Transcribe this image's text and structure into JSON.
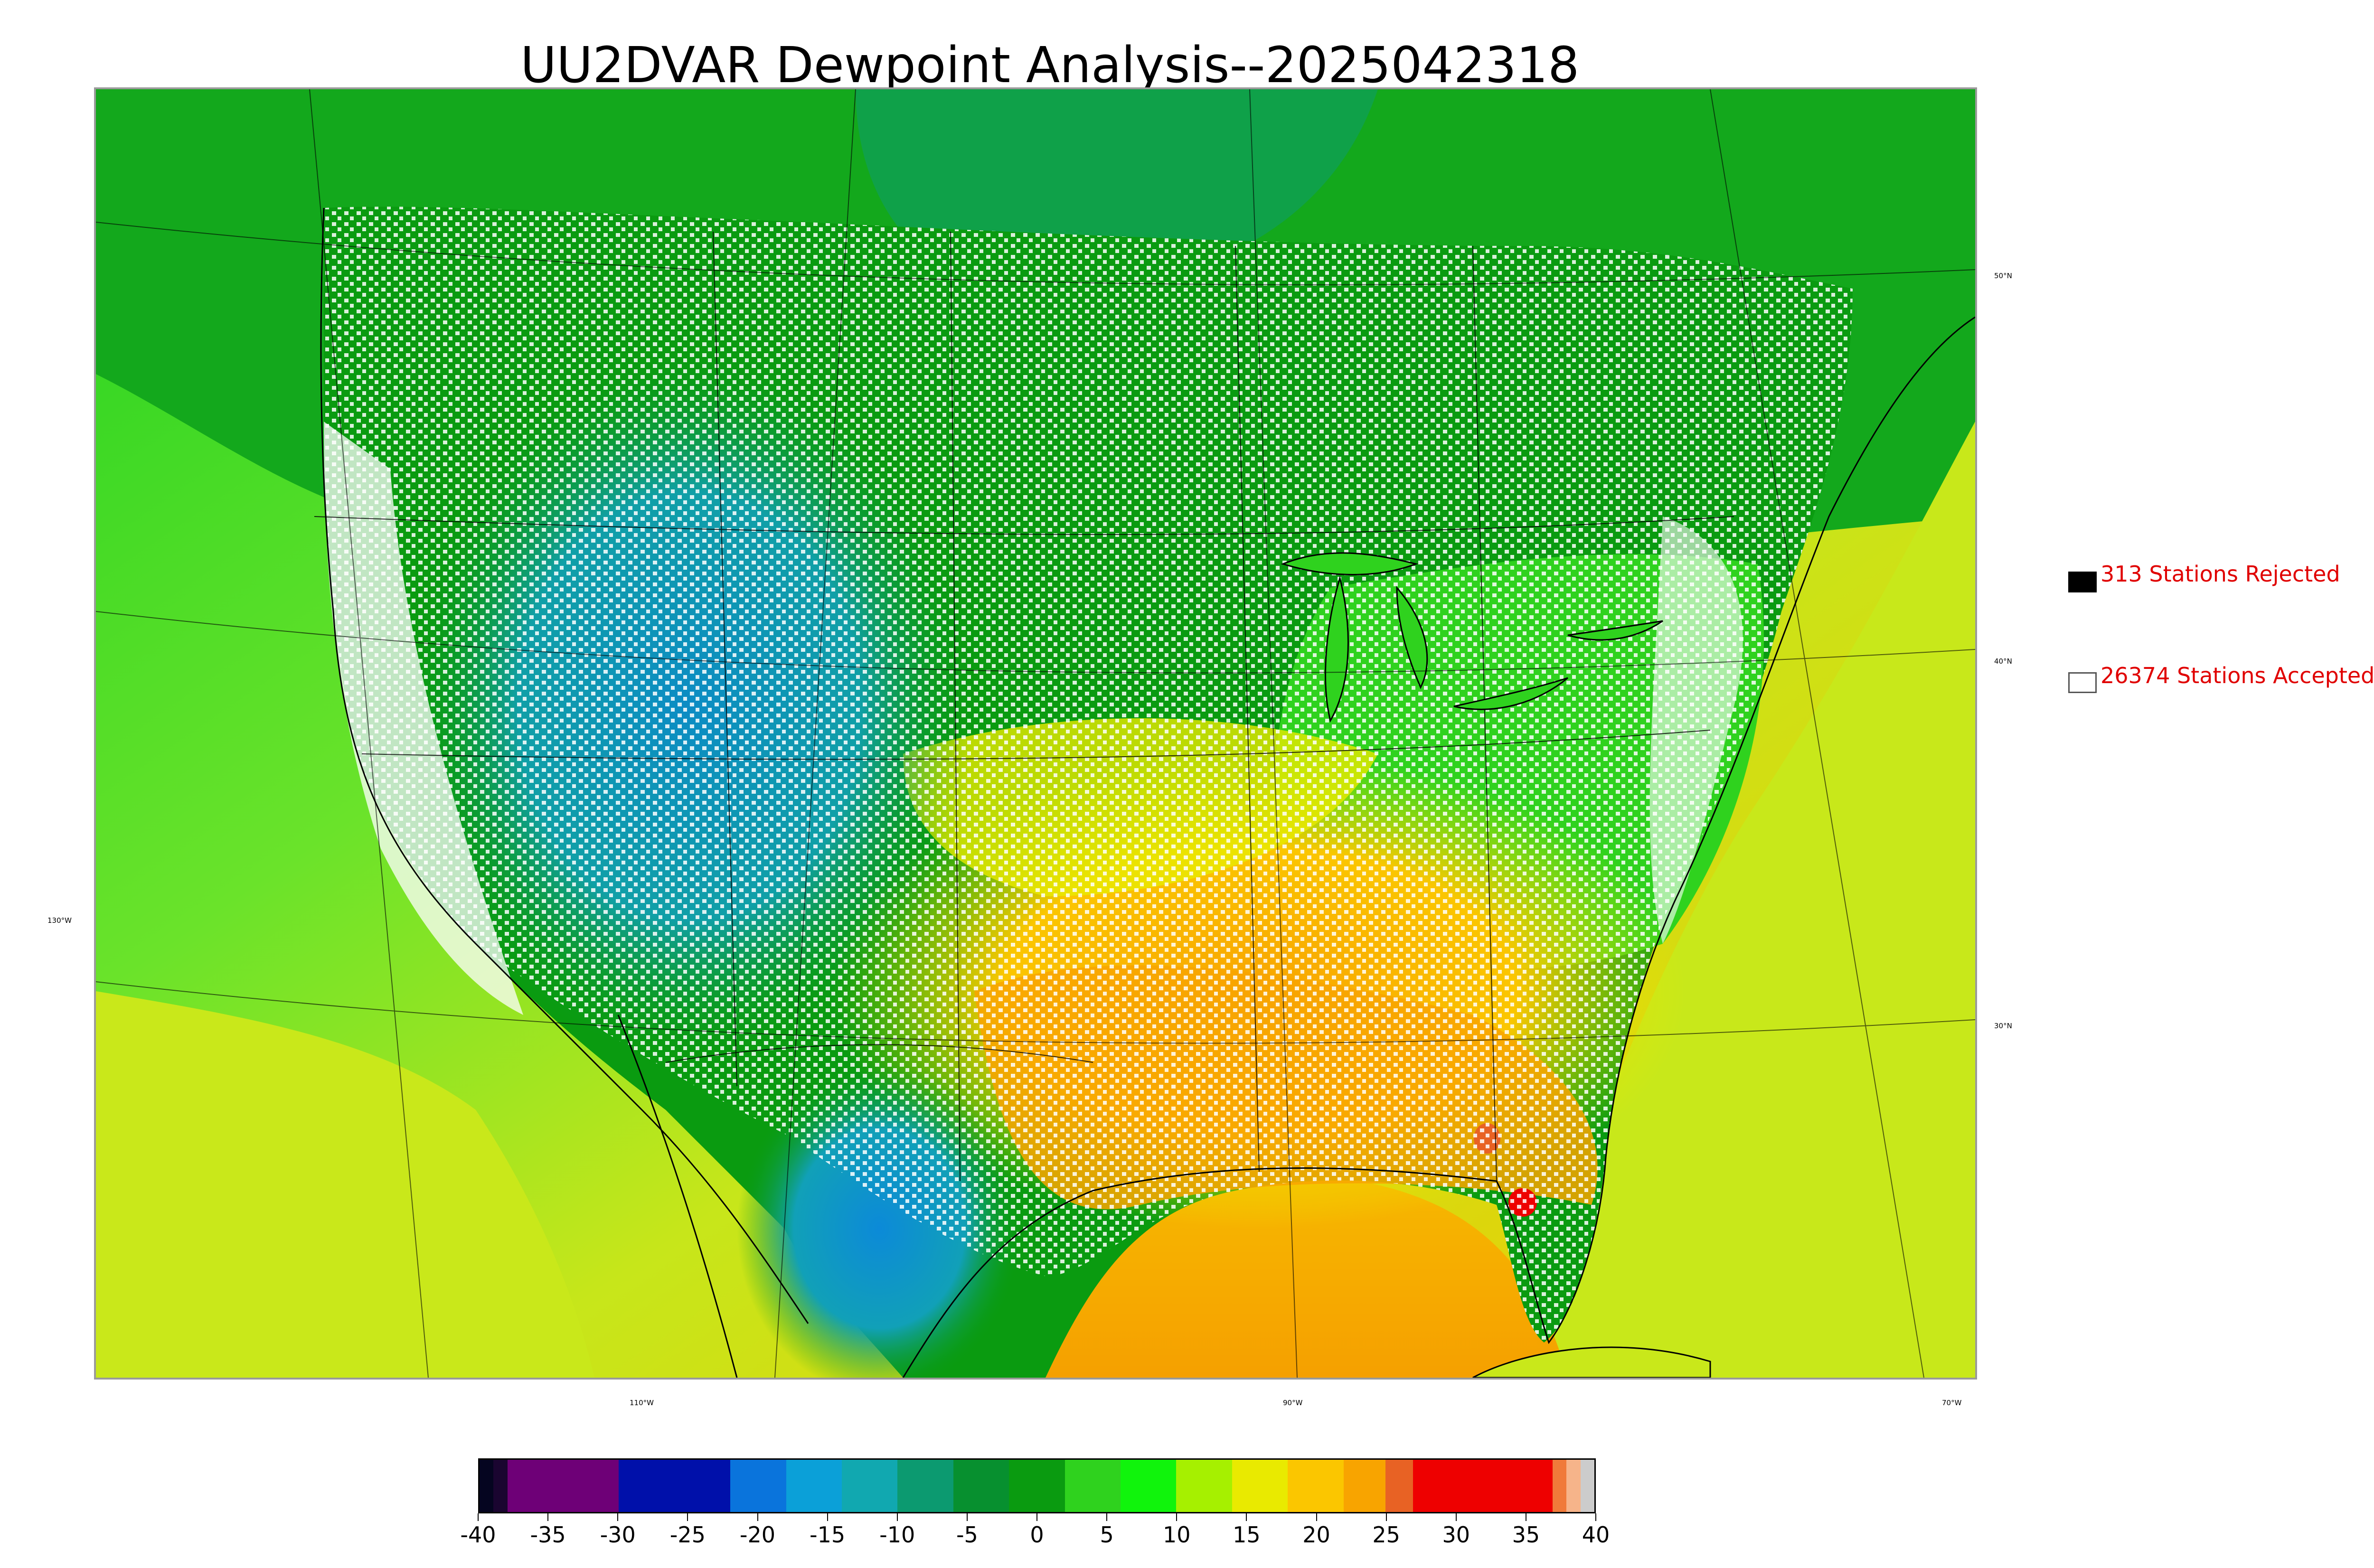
{
  "title": "UU2DVAR Dewpoint Analysis--2025042318",
  "map": {
    "lat_labels": [
      "50°N",
      "40°N",
      "30°N"
    ],
    "lon_labels": [
      "130°W",
      "110°W",
      "90°W",
      "70°W"
    ]
  },
  "legend": {
    "rejected": {
      "count": 313,
      "label": "313 Stations Rejected",
      "swatch": "#000000"
    },
    "accepted": {
      "count": 26374,
      "label": "26374 Stations Accepted",
      "swatch": "#ffffff"
    }
  },
  "colorbar": {
    "min": -40,
    "max": 40,
    "tick_labels": [
      "-40",
      "-35",
      "-30",
      "-25",
      "-20",
      "-15",
      "-10",
      "-5",
      "0",
      "5",
      "10",
      "15",
      "20",
      "25",
      "30",
      "35",
      "40"
    ],
    "stops": [
      {
        "from": -40,
        "to": -39,
        "color": "#050520"
      },
      {
        "from": -39,
        "to": -38,
        "color": "#1a0530"
      },
      {
        "from": -38,
        "to": -30,
        "color": "#6e0077"
      },
      {
        "from": -30,
        "to": -22,
        "color": "#0010aa"
      },
      {
        "from": -22,
        "to": -18,
        "color": "#0a74dc"
      },
      {
        "from": -18,
        "to": -14,
        "color": "#0ba0d8"
      },
      {
        "from": -14,
        "to": -10,
        "color": "#11a8b0"
      },
      {
        "from": -10,
        "to": -6,
        "color": "#0c9a70"
      },
      {
        "from": -6,
        "to": -2,
        "color": "#07902f"
      },
      {
        "from": -2,
        "to": 2,
        "color": "#0a9b10"
      },
      {
        "from": 2,
        "to": 6,
        "color": "#2fd21e"
      },
      {
        "from": 6,
        "to": 10,
        "color": "#10f40c"
      },
      {
        "from": 10,
        "to": 14,
        "color": "#a6f000"
      },
      {
        "from": 14,
        "to": 18,
        "color": "#e9ea00"
      },
      {
        "from": 18,
        "to": 22,
        "color": "#fbc600"
      },
      {
        "from": 22,
        "to": 25,
        "color": "#f8a400"
      },
      {
        "from": 25,
        "to": 27,
        "color": "#e86224"
      },
      {
        "from": 27,
        "to": 37,
        "color": "#ee0000"
      },
      {
        "from": 37,
        "to": 38,
        "color": "#f07a3a"
      },
      {
        "from": 38,
        "to": 39,
        "color": "#f6b48a"
      },
      {
        "from": 39,
        "to": 40,
        "color": "#cccccc"
      }
    ]
  }
}
